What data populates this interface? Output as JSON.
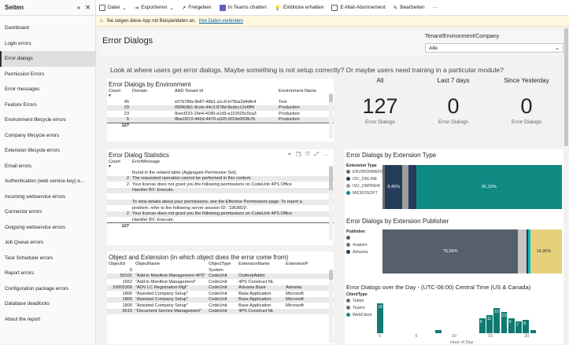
{
  "sidebar": {
    "title": "Seiten",
    "items": [
      {
        "label": "Dashboard"
      },
      {
        "label": "Login errors"
      },
      {
        "label": "Error dialogs",
        "active": true
      },
      {
        "label": "Permission Errors"
      },
      {
        "label": "Error messages"
      },
      {
        "label": "Feature Errors"
      },
      {
        "label": "Environment lifecycle errors"
      },
      {
        "label": "Company lifecycle errors"
      },
      {
        "label": "Extension lifecycle errors"
      },
      {
        "label": "Email errors"
      },
      {
        "label": "Authentication (web service key) e..."
      },
      {
        "label": "Incoming webservice errors"
      },
      {
        "label": "Connector errors"
      },
      {
        "label": "Outgoing webservice errors"
      },
      {
        "label": "Job Queue errors"
      },
      {
        "label": "Task Scheduler errors"
      },
      {
        "label": "Report errors"
      },
      {
        "label": "Configuration package errors"
      },
      {
        "label": "Database deadlocks"
      },
      {
        "label": "About the report"
      }
    ]
  },
  "toolbar": {
    "file": "Datei",
    "export": "Exportieren",
    "share": "Freigeben",
    "teams": "In Teams chatten",
    "insights": "Einblicke erhalten",
    "subscribe": "E-Mail-Abonnement",
    "edit": "Bearbeiten",
    "more": "···"
  },
  "infobar": {
    "text": "Sie zeigen diese App mit Beispieldaten an.",
    "link": "Ihre Daten verbinden"
  },
  "report": {
    "title": "Error Dialogs",
    "subtitle": "Look at where users get error dialogs. Maybe something is not setup correctly? Or maybe users need training in a particular module?",
    "slicer_label": "Tenant/Environment/Company",
    "slicer_value": "Alle"
  },
  "by_env": {
    "title": "Error Dialogs by Environment",
    "headers": [
      "Count",
      "Domain",
      "AAD Tenant Id",
      "Environment Name"
    ],
    "rows": [
      [
        "45",
        "",
        "e07b78fa-9b87-48b1-a1c6-b75ba2d4dfe4",
        "Test"
      ],
      [
        "29",
        "",
        "05f963b1-8ceb-44c3-878d-8edcc12e6ff4",
        "Production"
      ],
      [
        "23",
        "",
        "9cecf223-19e4-4180-a1d9-a110525c0ca3",
        "Production"
      ],
      [
        "6",
        "",
        "8ba1f372-442d-4470-a325-6f19e0f29b7b",
        "Production"
      ]
    ],
    "total": "127"
  },
  "stats": {
    "title": "Error Dialog Statistics",
    "headers": [
      "Count",
      "ErrorMessage"
    ],
    "rows": [
      [
        "",
        "found in the related table (Aggregate Permission Set)."
      ],
      [
        "2",
        "The requested operation cannot be performed in this context."
      ],
      [
        "2",
        "Your license does not grant you the following permissions on CodeUnit 4PS Office"
      ],
      [
        "",
        "Handler BV: Execute."
      ],
      [
        "",
        ""
      ],
      [
        "",
        "To view details about your permissions, see the Effective Permissions page. To report a"
      ],
      [
        "",
        "problem, refer to the following server session ID: '1963819'."
      ],
      [
        "2",
        "Your license does not grant you the following permissions on CodeUnit 4PS Office"
      ],
      [
        "",
        "Handler BV: Execute."
      ]
    ],
    "total": "127"
  },
  "objects": {
    "title": "Object and Extension (in which object does the error come from)",
    "headers": [
      "ObjectId",
      "ObjectName",
      "ObjectType",
      "ExtensionName",
      "ExtensionP"
    ],
    "rows": [
      [
        "0",
        "",
        "System",
        "",
        ""
      ],
      [
        "50101",
        "\"Add-in Manifest Management 4PS\"",
        "CodeUnit",
        "OutlookAddin",
        ""
      ],
      [
        "1652",
        "\"Add-in Manifest Management\"",
        "CodeUnit",
        "4PS Construct NL",
        ""
      ],
      [
        "10002309",
        "\"ADV LC Registration Mgt\"",
        "CodeUnit",
        "Advania Base",
        "Advania"
      ],
      [
        "1800",
        "\"Assisted Company Setup\"",
        "CodeUnit",
        "Base Application",
        "Microsoft"
      ],
      [
        "1800",
        "\"Assisted Company Setup\"",
        "CodeUnit",
        "Base Application",
        "Microsoft"
      ],
      [
        "1800",
        "\"Assisted Company Setup\"",
        "CodeUnit",
        "Base Application",
        "Microsoft"
      ],
      [
        "9510",
        "\"Document Service Management\"",
        "CodeUnit",
        "4PS Construct NL",
        ""
      ]
    ]
  },
  "kpis": [
    {
      "head": "All",
      "value": "127",
      "label": "Error Dialogs"
    },
    {
      "head": "Last 7 days",
      "value": "0",
      "label": "Error Dialogs"
    },
    {
      "head": "Since Yesterday",
      "value": "0",
      "label": "Error Dialogs"
    }
  ],
  "ext_type": {
    "title": "Error Dialogs by Extension Type",
    "legend_title": "Extension Type",
    "legend": [
      {
        "name": "ENVIRONMENT",
        "color": "#6f6f6f"
      },
      {
        "name": "ISV_ONLINE",
        "color": "#253d5b"
      },
      {
        "name": "ISV_ONPREM",
        "color": "#9e9e9e"
      },
      {
        "name": "MICROSOFT",
        "color": "#0f8a83"
      }
    ],
    "segments": [
      {
        "value": 1.5,
        "color": "#6f6f6f",
        "label": ""
      },
      {
        "value": 9.45,
        "color": "#253d5b",
        "label": "9,45%"
      },
      {
        "value": 3.5,
        "color": "#9e9e9e",
        "label": ""
      },
      {
        "value": 4.45,
        "color": "#253d5b",
        "label": ""
      },
      {
        "value": 81.1,
        "color": "#0f8a83",
        "label": "81,10%"
      }
    ]
  },
  "ext_pub": {
    "title": "Error Dialogs by Extension Publisher",
    "legend_title": "Publisher",
    "legend": [
      {
        "name": "",
        "color": "#555f6d"
      },
      {
        "name": "4oakion",
        "color": "#6f6f6f"
      },
      {
        "name": "Advania",
        "color": "#253d5b"
      }
    ],
    "segments": [
      {
        "value": 75.59,
        "color": "#555f6d",
        "label": "75,59%"
      },
      {
        "value": 4.5,
        "color": "#c8c6c4",
        "label": ""
      },
      {
        "value": 1.2,
        "color": "#253d5b",
        "label": ""
      },
      {
        "value": 1.1,
        "color": "#00b7c3",
        "label": ""
      },
      {
        "value": 14.96,
        "color": "#e6d17a",
        "label": "14,96%"
      },
      {
        "value": 2.65,
        "color": "#e6d17a",
        "label": ""
      }
    ]
  },
  "over_day": {
    "title": "Error Dialogs over the Day - (UTC-06:00) Central Time (US & Canada)",
    "legend_title": "ClientType",
    "legend": [
      {
        "name": "Tablet",
        "color": "#6f6f6f"
      },
      {
        "name": "Teams",
        "color": "#6f6f6f"
      },
      {
        "name": "WebClient",
        "color": "#0f8a83"
      }
    ],
    "xlabel": "Hour of Day",
    "ticks": [
      "0",
      "5",
      "10",
      "15",
      "20"
    ]
  },
  "chart_data": {
    "type": "bar",
    "title": "Error Dialogs over the Day - (UTC-06:00) Central Time (US & Canada)",
    "xlabel": "Hour of Day",
    "ylabel": "",
    "x": [
      0,
      8,
      14,
      15,
      16,
      17,
      18,
      19,
      20,
      21
    ],
    "series": [
      {
        "name": "WebClient",
        "values": [
          18,
          2,
          9,
          11,
          15,
          13,
          9,
          7,
          8,
          2
        ]
      }
    ],
    "xlim": [
      -1,
      23
    ]
  }
}
